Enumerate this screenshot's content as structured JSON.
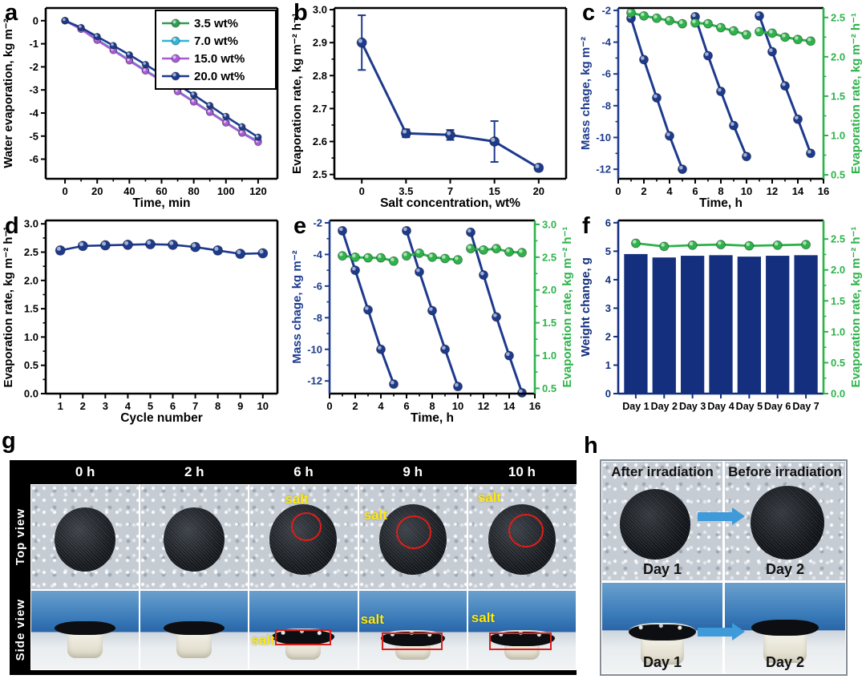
{
  "panel_letters": [
    "a",
    "b",
    "c",
    "d",
    "e",
    "f",
    "g",
    "h"
  ],
  "colors": {
    "navy": "#1d3a8d",
    "green_series": "#2f9e52",
    "cyan_series": "#2fb6d5",
    "purple_series": "#a75bd7",
    "axis_green": "#2eb34b",
    "bar_navy": "#132f7e",
    "salt_red": "#dc1f1a",
    "salt_yellow": "#ffe812",
    "arrow_blue": "#3e9ad8"
  },
  "chart_data": [
    {
      "panel": "a",
      "type": "line",
      "xlabel": "Time, min",
      "ylabel": "Water evaporation, kg m⁻²",
      "xlim": [
        -12,
        132
      ],
      "xticks": [
        "0",
        "20",
        "40",
        "60",
        "80",
        "100",
        "120"
      ],
      "minor_x": true,
      "ylim": [
        -6.85,
        0.55
      ],
      "yticks": [
        "0",
        "-1",
        "-2",
        "-3",
        "-4",
        "-5",
        "-6"
      ],
      "x": [
        0,
        10,
        20,
        30,
        40,
        50,
        60,
        70,
        80,
        90,
        100,
        110,
        120
      ],
      "legend": true,
      "series": [
        {
          "name": "3.5 wt%",
          "color": "#2f9e52",
          "values": [
            0,
            -0.35,
            -0.82,
            -1.26,
            -1.71,
            -2.15,
            -2.58,
            -3.05,
            -3.5,
            -3.95,
            -4.41,
            -4.85,
            -5.23
          ]
        },
        {
          "name": "7.0 wt%",
          "color": "#2fb6d5",
          "values": [
            0,
            -0.36,
            -0.83,
            -1.27,
            -1.72,
            -2.16,
            -2.59,
            -3.06,
            -3.51,
            -3.96,
            -4.42,
            -4.86,
            -5.24
          ]
        },
        {
          "name": "15.0 wt%",
          "color": "#a75bd7",
          "values": [
            0,
            -0.37,
            -0.85,
            -1.29,
            -1.74,
            -2.18,
            -2.61,
            -3.07,
            -3.52,
            -3.97,
            -4.43,
            -4.87,
            -5.27
          ]
        },
        {
          "name": "20.0 wt%",
          "color": "#1d3a8d",
          "values": [
            0,
            -0.3,
            -0.69,
            -1.08,
            -1.48,
            -1.9,
            -2.33,
            -2.76,
            -3.22,
            -3.68,
            -4.15,
            -4.6,
            -5.05
          ]
        }
      ]
    },
    {
      "panel": "b",
      "type": "line",
      "xlabel": "Salt concentration, wt%",
      "ylabel": "Evaporation rate, kg m⁻² h⁻¹",
      "categories": [
        "0",
        "3.5",
        "7",
        "15",
        "20"
      ],
      "ylim": [
        2.487,
        3.005
      ],
      "yticks": [
        "2.5",
        "2.6",
        "2.7",
        "2.8",
        "2.9",
        "3.0"
      ],
      "minor_y": true,
      "series": [
        {
          "name": "evaporation rate",
          "color": "#1d3a8d",
          "values": [
            2.9,
            2.625,
            2.62,
            2.6,
            2.52
          ],
          "errors": [
            0.083,
            0.012,
            0.015,
            0.062,
            0.008
          ]
        }
      ]
    },
    {
      "panel": "c",
      "type": "dual",
      "xlabel": "Time, h",
      "ylabel_left": "Mass chage, kg m⁻²",
      "ylabel_right": "Evaporation rate, kg m⁻² h⁻¹",
      "left_color": "#1d3a8d",
      "right_color": "#2eb34b",
      "xlim": [
        0,
        16
      ],
      "xticks": [
        "0",
        "2",
        "4",
        "6",
        "8",
        "10",
        "12",
        "14",
        "16"
      ],
      "minor_x": true,
      "ylim_left": [
        -12.6,
        -1.85
      ],
      "yticks_left": [
        "-2",
        "-4",
        "-6",
        "-8",
        "-10",
        "-12"
      ],
      "minor_left": true,
      "ylim_right": [
        0.45,
        2.62
      ],
      "yticks_right": [
        "0.5",
        "1.0",
        "1.5",
        "2.0",
        "2.5"
      ],
      "minor_right": true,
      "left_segments": [
        {
          "x": [
            1,
            2,
            3,
            4,
            5
          ],
          "values": [
            -2.5,
            -5.1,
            -7.5,
            -9.9,
            -12.0
          ]
        },
        {
          "x": [
            6,
            7,
            8,
            9,
            10
          ],
          "values": [
            -2.4,
            -4.85,
            -7.1,
            -9.25,
            -11.2
          ]
        },
        {
          "x": [
            11,
            12,
            13,
            14,
            15
          ],
          "values": [
            -2.35,
            -4.6,
            -6.75,
            -8.85,
            -11.0
          ]
        }
      ],
      "right_segments": [
        {
          "x": [
            1,
            2,
            3,
            4,
            5
          ],
          "values": [
            2.56,
            2.52,
            2.49,
            2.46,
            2.42
          ]
        },
        {
          "x": [
            6,
            7,
            8,
            9,
            10
          ],
          "values": [
            2.43,
            2.42,
            2.37,
            2.33,
            2.28
          ]
        },
        {
          "x": [
            11,
            12,
            13,
            14,
            15
          ],
          "values": [
            2.32,
            2.3,
            2.25,
            2.22,
            2.2
          ]
        }
      ]
    },
    {
      "panel": "d",
      "type": "line",
      "xlabel": "Cycle number",
      "ylabel": "Evaporation rate, kg m⁻² h⁻¹",
      "xlim": [
        0.35,
        10.65
      ],
      "xticks": [
        "1",
        "2",
        "3",
        "4",
        "5",
        "6",
        "7",
        "8",
        "9",
        "10"
      ],
      "ylim": [
        0,
        3.06
      ],
      "yticks": [
        "0.0",
        "0.5",
        "1.0",
        "1.5",
        "2.0",
        "2.5",
        "3.0"
      ],
      "minor_y": true,
      "x": [
        1,
        2,
        3,
        4,
        5,
        6,
        7,
        8,
        9,
        10
      ],
      "series": [
        {
          "name": "evaporation rate",
          "color": "#1d3a8d",
          "values": [
            2.53,
            2.61,
            2.62,
            2.63,
            2.64,
            2.63,
            2.59,
            2.53,
            2.47,
            2.48
          ]
        }
      ]
    },
    {
      "panel": "e",
      "type": "dual",
      "xlabel": "Time, h",
      "ylabel_left": "Mass chage, kg m⁻²",
      "ylabel_right": "Evaporation rate, kg m⁻² h⁻¹",
      "left_color": "#1d3a8d",
      "right_color": "#2eb34b",
      "xlim": [
        0,
        16
      ],
      "xticks": [
        "0",
        "2",
        "4",
        "6",
        "8",
        "10",
        "12",
        "14",
        "16"
      ],
      "minor_x": true,
      "ylim_left": [
        -12.8,
        -1.85
      ],
      "yticks_left": [
        "-2",
        "-4",
        "-6",
        "-8",
        "-10",
        "-12"
      ],
      "minor_left": true,
      "ylim_right": [
        0.42,
        3.06
      ],
      "yticks_right": [
        "0.5",
        "1.0",
        "1.5",
        "2.0",
        "2.5",
        "3.0"
      ],
      "minor_right": true,
      "left_segments": [
        {
          "x": [
            1,
            2,
            3,
            4,
            5
          ],
          "values": [
            -2.5,
            -5.0,
            -7.5,
            -10.0,
            -12.2
          ]
        },
        {
          "x": [
            6,
            7,
            8,
            9,
            10
          ],
          "values": [
            -2.5,
            -5.1,
            -7.55,
            -10.0,
            -12.35
          ]
        },
        {
          "x": [
            11,
            12,
            13,
            14,
            15
          ],
          "values": [
            -2.6,
            -5.3,
            -7.95,
            -10.4,
            -12.75
          ]
        }
      ],
      "right_segments": [
        {
          "x": [
            1,
            2,
            3,
            4,
            5
          ],
          "values": [
            2.52,
            2.5,
            2.49,
            2.49,
            2.44
          ]
        },
        {
          "x": [
            6,
            7,
            8,
            9,
            10
          ],
          "values": [
            2.52,
            2.56,
            2.5,
            2.48,
            2.46
          ]
        },
        {
          "x": [
            11,
            12,
            13,
            14,
            15
          ],
          "values": [
            2.63,
            2.61,
            2.63,
            2.58,
            2.57
          ]
        }
      ]
    },
    {
      "panel": "f",
      "type": "bar",
      "categories": [
        "Day 1",
        "Day 2",
        "Day 3",
        "Day 4",
        "Day 5",
        "Day 6",
        "Day 7"
      ],
      "ylabel_left": "Weight change, g",
      "ylabel_right": "Evaporation rate, kg m⁻² h⁻¹",
      "left_color": "#132f7e",
      "right_color": "#2eb34b",
      "bottom_color": "#132f7e",
      "ylim_left": [
        0,
        6.08
      ],
      "yticks_left": [
        "0",
        "1",
        "2",
        "3",
        "4",
        "5",
        "6"
      ],
      "ylim_right": [
        0,
        2.8
      ],
      "yticks_right": [
        "0.0",
        "0.5",
        "1.0",
        "1.5",
        "2.0",
        "2.5"
      ],
      "minor_right": true,
      "bar_color": "#132f7e",
      "bar_values": [
        4.9,
        4.78,
        4.84,
        4.86,
        4.81,
        4.84,
        4.86
      ],
      "line_color": "#2eb34b",
      "line_values": [
        2.43,
        2.38,
        2.4,
        2.41,
        2.39,
        2.4,
        2.41
      ]
    }
  ],
  "photos_g": {
    "row_labels": [
      "Top view",
      "Side view"
    ],
    "times": [
      "0 h",
      "2 h",
      "6 h",
      "9 h",
      "10 h"
    ],
    "salt_label": "salt"
  },
  "photos_h": {
    "top_labels": [
      "After irradiation",
      "Before irradiation"
    ],
    "captions": [
      "Day 1",
      "Day 2",
      "Day 1",
      "Day 2"
    ]
  }
}
